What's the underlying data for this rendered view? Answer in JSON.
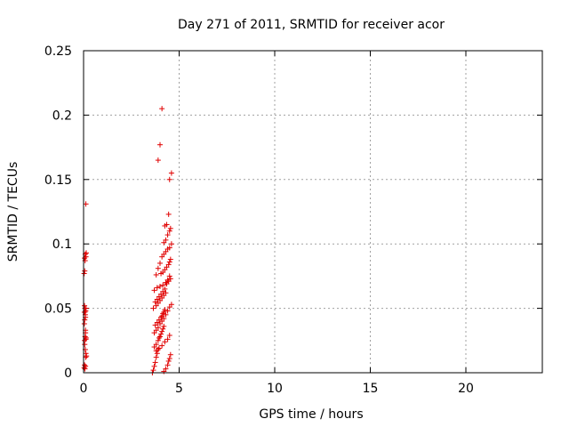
{
  "chart_data": {
    "type": "scatter",
    "title": "Day 271 of 2011, SRMTID for receiver acor",
    "xlabel": "GPS time / hours",
    "ylabel": "SRMTID / TECUs",
    "xlim": [
      0,
      24
    ],
    "ylim": [
      0,
      0.25
    ],
    "x_ticks": [
      0,
      5,
      10,
      15,
      20
    ],
    "x_tick_labels": [
      "0",
      "5",
      "10",
      "15",
      "20"
    ],
    "y_ticks": [
      0,
      0.05,
      0.1,
      0.15,
      0.2,
      0.25
    ],
    "y_tick_labels": [
      "0",
      "0.05",
      "0.1",
      "0.15",
      "0.2",
      "0.25"
    ],
    "grid": true,
    "marker": "plus",
    "color": "#e00000",
    "series": [
      {
        "x": [
          0.03,
          0.05,
          0.07,
          0.1,
          0.12,
          0.15,
          0.05,
          0.08,
          0.1,
          0.12,
          0.04,
          0.06,
          0.09,
          0.11,
          0.13,
          0.05,
          0.07,
          0.1,
          0.03,
          0.06,
          0.08,
          0.12,
          0.14,
          0.05,
          0.09,
          0.12,
          0.04,
          0.07,
          0.1,
          0.13,
          0.06,
          0.09,
          0.11,
          3.6,
          3.65,
          3.7,
          3.75,
          3.8,
          3.85,
          3.9,
          3.7,
          3.8,
          3.9,
          3.95,
          4.0,
          4.05,
          4.1,
          4.15,
          4.2,
          3.75,
          3.85,
          3.95,
          4.05,
          4.1,
          4.15,
          4.2,
          4.25,
          3.65,
          3.8,
          3.9,
          4.0,
          4.1,
          4.2,
          4.3,
          3.7,
          3.85,
          4.0,
          4.15,
          4.3,
          4.4,
          4.5,
          4.05,
          4.15,
          4.25,
          4.35,
          4.45,
          4.5,
          4.55,
          4.1,
          4.2,
          4.3,
          4.4,
          4.5,
          4.6,
          4.2,
          4.3,
          4.4,
          4.5,
          4.55,
          4.25,
          4.35,
          4.45,
          4.5,
          4.6,
          3.9,
          4.0,
          4.1,
          4.2,
          4.3,
          4.4,
          4.45,
          4.5,
          4.55,
          3.8,
          3.95,
          4.1,
          4.25,
          4.4,
          4.5,
          3.7,
          3.8,
          3.9,
          4.0,
          4.1,
          4.2,
          4.3,
          4.4,
          4.5,
          4.6,
          3.75,
          3.85,
          3.95,
          4.05,
          4.15,
          4.25,
          4.35,
          4.45,
          4.55,
          3.8,
          3.9,
          4.0
        ],
        "y": [
          0.004,
          0.006,
          0.003,
          0.005,
          0.015,
          0.013,
          0.025,
          0.028,
          0.031,
          0.026,
          0.038,
          0.041,
          0.045,
          0.048,
          0.05,
          0.052,
          0.047,
          0.043,
          0.077,
          0.079,
          0.087,
          0.09,
          0.093,
          0.089,
          0.092,
          0.131,
          0.047,
          0.05,
          0.033,
          0.027,
          0.022,
          0.018,
          0.012,
          0.0,
          0.002,
          0.005,
          0.008,
          0.012,
          0.015,
          0.018,
          0.02,
          0.022,
          0.025,
          0.027,
          0.028,
          0.03,
          0.032,
          0.034,
          0.036,
          0.037,
          0.039,
          0.041,
          0.043,
          0.044,
          0.046,
          0.047,
          0.049,
          0.05,
          0.052,
          0.054,
          0.056,
          0.058,
          0.06,
          0.062,
          0.064,
          0.066,
          0.067,
          0.068,
          0.07,
          0.072,
          0.075,
          0.077,
          0.078,
          0.08,
          0.082,
          0.084,
          0.086,
          0.088,
          0.09,
          0.092,
          0.094,
          0.096,
          0.097,
          0.1,
          0.101,
          0.103,
          0.107,
          0.11,
          0.112,
          0.114,
          0.115,
          0.123,
          0.15,
          0.155,
          0.165,
          0.177,
          0.205,
          0.001,
          0.003,
          0.006,
          0.009,
          0.011,
          0.014,
          0.017,
          0.019,
          0.021,
          0.024,
          0.026,
          0.029,
          0.031,
          0.033,
          0.035,
          0.038,
          0.04,
          0.042,
          0.045,
          0.048,
          0.051,
          0.053,
          0.055,
          0.057,
          0.059,
          0.061,
          0.063,
          0.065,
          0.069,
          0.071,
          0.073,
          0.076,
          0.081,
          0.085
        ]
      }
    ]
  }
}
